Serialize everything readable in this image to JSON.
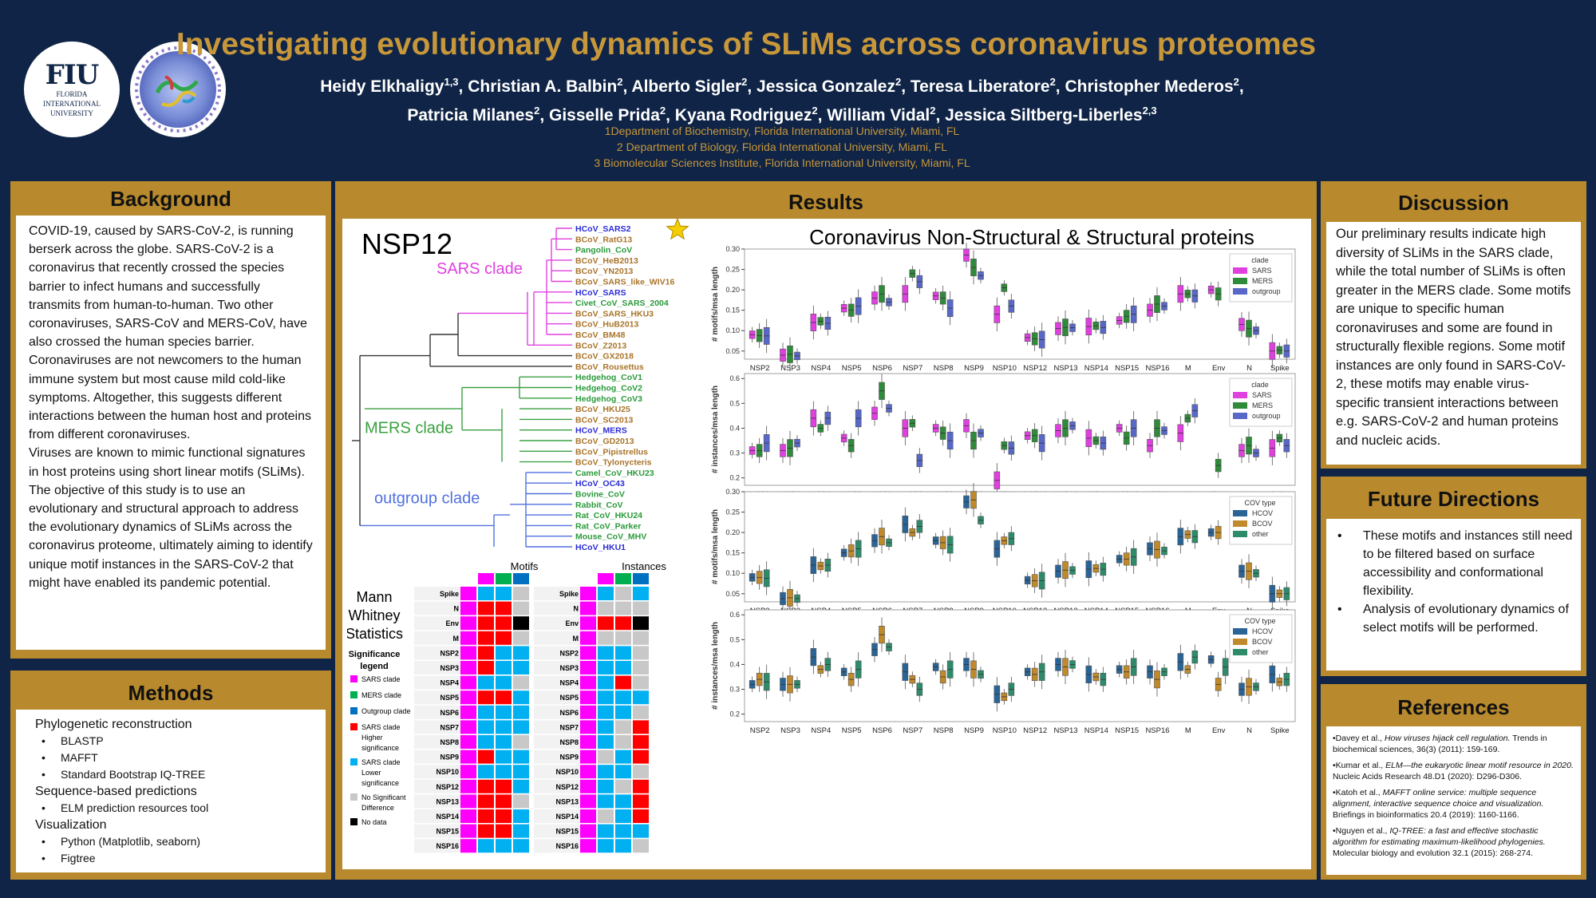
{
  "logo": {
    "fiu": "FIU",
    "fiu_sub1": "FLORIDA",
    "fiu_sub2": "INTERNATIONAL",
    "fiu_sub3": "UNIVERSITY"
  },
  "title": "Investigating evolutionary dynamics of SLiMs across coronavirus proteomes",
  "authors_line1": "Heidy Elkhaligy1,3, Christian A. Balbin2, Alberto Sigler2, Jessica Gonzalez2, Teresa Liberatore2, Christopher Mederos2,",
  "authors_line2": "Patricia Milanes2, Gisselle Prida2, Kyana Rodriguez2, William Vidal2, Jessica Siltberg-Liberles2,3",
  "affiliations": [
    "1Department of  Biochemistry, Florida International University, Miami, FL",
    "2 Department of  Biology, Florida International University, Miami, FL",
    "3 Biomolecular Sciences Institute, Florida International University, Miami, FL"
  ],
  "background": {
    "heading": "Background",
    "text": "COVID-19, caused by SARS-CoV-2, is running berserk across the globe. SARS-CoV-2 is a coronavirus that recently crossed the species barrier to infect humans and successfully transmits from human-to-human. Two other coronaviruses, SARS-CoV and MERS-CoV, have also crossed the human species barrier. Coronaviruses are not newcomers to the human immune system but most cause mild cold-like symptoms. Altogether, this suggests different interactions between the human host and proteins from different coronaviruses.",
    "text2": "Viruses are known to mimic functional signatures in host proteins using short linear motifs (SLiMs).",
    "text3": "The objective of this study is to use an evolutionary and structural approach to address the evolutionary dynamics of SLiMs across the coronavirus proteome, ultimately aiming to identify unique motif instances in the SARS-CoV-2 that might have enabled its pandemic potential."
  },
  "methods": {
    "heading": "Methods",
    "sections": [
      {
        "title": "Phylogenetic reconstruction",
        "items": [
          "BLASTP",
          "MAFFT",
          "Standard Bootstrap IQ-TREE"
        ]
      },
      {
        "title": "Sequence-based predictions",
        "items": [
          "ELM prediction resources tool"
        ]
      },
      {
        "title": "Visualization",
        "items": [
          "Python (Matplotlib, seaborn)",
          "Figtree"
        ]
      }
    ]
  },
  "results": {
    "heading": "Results",
    "nsp12": "NSP12",
    "chart_title": "Coronavirus Non-Structural & Structural proteins",
    "clades": [
      "SARS clade",
      "MERS clade",
      "outgroup clade"
    ],
    "tree_taxa": [
      {
        "name": "HCoV_SARS2",
        "color": "#2b2bd9"
      },
      {
        "name": "BCoV_RatG13",
        "color": "#a8742a"
      },
      {
        "name": "Pangolin_CoV",
        "color": "#2a9a3a"
      },
      {
        "name": "BCoV_HeB2013",
        "color": "#a8742a"
      },
      {
        "name": "BCoV_YN2013",
        "color": "#a8742a"
      },
      {
        "name": "BCoV_SARS_like_WIV16",
        "color": "#a8742a"
      },
      {
        "name": "HCoV_SARS",
        "color": "#2b2bd9"
      },
      {
        "name": "Civet_CoV_SARS_2004",
        "color": "#2a9a3a"
      },
      {
        "name": "BCoV_SARS_HKU3",
        "color": "#a8742a"
      },
      {
        "name": "BCoV_HuB2013",
        "color": "#a8742a"
      },
      {
        "name": "BCoV_BM48",
        "color": "#a8742a"
      },
      {
        "name": "BCoV_Z2013",
        "color": "#a8742a"
      },
      {
        "name": "BCoV_GX2018",
        "color": "#a8742a"
      },
      {
        "name": "BCoV_Rousettus",
        "color": "#a8742a"
      },
      {
        "name": "Hedgehog_CoV1",
        "color": "#2a9a3a"
      },
      {
        "name": "Hedgehog_CoV2",
        "color": "#2a9a3a"
      },
      {
        "name": "Hedgehog_CoV3",
        "color": "#2a9a3a"
      },
      {
        "name": "BCoV_HKU25",
        "color": "#a8742a"
      },
      {
        "name": "BCoV_SC2013",
        "color": "#a8742a"
      },
      {
        "name": "HCoV_MERS",
        "color": "#2b2bd9"
      },
      {
        "name": "BCoV_GD2013",
        "color": "#a8742a"
      },
      {
        "name": "BCoV_Pipistrellus",
        "color": "#a8742a"
      },
      {
        "name": "BCoV_Tylonycteris",
        "color": "#a8742a"
      },
      {
        "name": "Camel_CoV_HKU23",
        "color": "#2a9a3a"
      },
      {
        "name": "HCoV_OC43",
        "color": "#2b2bd9"
      },
      {
        "name": "Bovine_CoV",
        "color": "#2a9a3a"
      },
      {
        "name": "Rabbit_CoV",
        "color": "#2a9a3a"
      },
      {
        "name": "Rat_CoV_HKU24",
        "color": "#2a9a3a"
      },
      {
        "name": "Rat_CoV_Parker",
        "color": "#2a9a3a"
      },
      {
        "name": "Mouse_CoV_MHV",
        "color": "#2a9a3a"
      },
      {
        "name": "HCoV_HKU1",
        "color": "#2b2bd9"
      }
    ],
    "mann": {
      "title_lines": [
        "Mann",
        "Whitney",
        "Statistics"
      ],
      "motifs": "Motifs",
      "instances": "Instances",
      "legend_title_lines": [
        "Significance",
        "legend"
      ],
      "legend": [
        {
          "label": "SARS clade",
          "color": "#ff00ff"
        },
        {
          "label": "MERS clade",
          "color": "#00b050"
        },
        {
          "label": "Outgroup clade",
          "color": "#0070c0"
        },
        {
          "label": "SARS clade Higher significance",
          "color": "#ff0000"
        },
        {
          "label": "SARS clade Lower significance",
          "color": "#00b0f0"
        },
        {
          "label": "No Significant Difference",
          "color": "#c8c8c8"
        },
        {
          "label": "No data",
          "color": "#000000"
        }
      ],
      "rows": [
        "Spike",
        "N",
        "Env",
        "M",
        "NSP2",
        "NSP3",
        "NSP4",
        "NSP5",
        "NSP6",
        "NSP7",
        "NSP8",
        "NSP9",
        "NSP10",
        "NSP12",
        "NSP13",
        "NSP14",
        "NSP15",
        "NSP16"
      ],
      "motif_cells": [
        [
          "B",
          "B",
          "G"
        ],
        [
          "R",
          "R",
          "G"
        ],
        [
          "R",
          "R",
          "K"
        ],
        [
          "R",
          "R",
          "G"
        ],
        [
          "R",
          "B",
          "B"
        ],
        [
          "R",
          "B",
          "B"
        ],
        [
          "B",
          "B",
          "G"
        ],
        [
          "R",
          "R",
          "B"
        ],
        [
          "B",
          "B",
          "B"
        ],
        [
          "B",
          "B",
          "B"
        ],
        [
          "B",
          "B",
          "G"
        ],
        [
          "R",
          "B",
          "B"
        ],
        [
          "B",
          "B",
          "B"
        ],
        [
          "R",
          "R",
          "B"
        ],
        [
          "R",
          "R",
          "G"
        ],
        [
          "R",
          "R",
          "B"
        ],
        [
          "R",
          "R",
          "B"
        ],
        [
          "B",
          "B",
          "B"
        ]
      ],
      "instance_cells": [
        [
          "B",
          "G",
          "B"
        ],
        [
          "G",
          "G",
          "G"
        ],
        [
          "R",
          "R",
          "K"
        ],
        [
          "G",
          "G",
          "G"
        ],
        [
          "B",
          "B",
          "G"
        ],
        [
          "B",
          "B",
          "G"
        ],
        [
          "B",
          "R",
          "G"
        ],
        [
          "B",
          "B",
          "B"
        ],
        [
          "B",
          "B",
          "G"
        ],
        [
          "B",
          "G",
          "R"
        ],
        [
          "B",
          "G",
          "R"
        ],
        [
          "G",
          "B",
          "R"
        ],
        [
          "B",
          "B",
          "G"
        ],
        [
          "B",
          "G",
          "R"
        ],
        [
          "B",
          "B",
          "R"
        ],
        [
          "G",
          "B",
          "R"
        ],
        [
          "B",
          "B",
          "B"
        ],
        [
          "B",
          "B",
          "G"
        ]
      ]
    },
    "categories": [
      "NSP2",
      "NSP3",
      "NSP4",
      "NSP5",
      "NSP6",
      "NSP7",
      "NSP8",
      "NSP9",
      "NSP10",
      "NSP12",
      "NSP13",
      "NSP14",
      "NSP15",
      "NSP16",
      "M",
      "Env",
      "N",
      "Spike"
    ],
    "plots": [
      {
        "ylabel": "# motifs/msa length",
        "ylim": [
          0.03,
          0.3
        ],
        "yticks": [
          "0.05",
          "0.10",
          "0.15",
          "0.20",
          "0.25",
          "0.30"
        ],
        "legend_title": "clade",
        "series": [
          {
            "name": "SARS",
            "color": "#e040e0"
          },
          {
            "name": "MERS",
            "color": "#2e8b3a"
          },
          {
            "name": "outgroup",
            "color": "#5868c8"
          }
        ],
        "medians": [
          [
            0.09,
            0.088,
            0.087
          ],
          [
            0.04,
            0.042,
            0.038
          ],
          [
            0.12,
            0.123,
            0.118
          ],
          [
            0.155,
            0.15,
            0.16
          ],
          [
            0.18,
            0.19,
            0.17
          ],
          [
            0.19,
            0.24,
            0.22
          ],
          [
            0.185,
            0.18,
            0.155
          ],
          [
            0.285,
            0.255,
            0.235
          ],
          [
            0.14,
            0.205,
            0.16
          ],
          [
            0.083,
            0.08,
            0.078
          ],
          [
            0.105,
            0.108,
            0.107
          ],
          [
            0.11,
            0.112,
            0.108
          ],
          [
            0.125,
            0.135,
            0.14
          ],
          [
            0.15,
            0.165,
            0.16
          ],
          [
            0.19,
            0.19,
            0.185
          ],
          [
            0.2,
            0.19,
            0.0
          ],
          [
            0.115,
            0.105,
            0.1
          ],
          [
            0.05,
            0.052,
            0.05
          ]
        ]
      },
      {
        "ylabel": "# instances/msa length",
        "ylim": [
          0.17,
          0.62
        ],
        "yticks": [
          "0.2",
          "0.3",
          "0.4",
          "0.5",
          "0.6"
        ],
        "legend_title": "clade",
        "series": [
          {
            "name": "SARS",
            "color": "#e040e0"
          },
          {
            "name": "MERS",
            "color": "#2e8b3a"
          },
          {
            "name": "outgroup",
            "color": "#5868c8"
          }
        ],
        "medians": [
          [
            0.31,
            0.31,
            0.34
          ],
          [
            0.31,
            0.32,
            0.34
          ],
          [
            0.44,
            0.4,
            0.44
          ],
          [
            0.36,
            0.33,
            0.44
          ],
          [
            0.46,
            0.55,
            0.48
          ],
          [
            0.4,
            0.42,
            0.27
          ],
          [
            0.4,
            0.38,
            0.35
          ],
          [
            0.41,
            0.35,
            0.38
          ],
          [
            0.19,
            0.33,
            0.32
          ],
          [
            0.37,
            0.37,
            0.34
          ],
          [
            0.39,
            0.4,
            0.41
          ],
          [
            0.36,
            0.35,
            0.34
          ],
          [
            0.4,
            0.36,
            0.4
          ],
          [
            0.33,
            0.4,
            0.39
          ],
          [
            0.38,
            0.44,
            0.47
          ],
          [
            0.0,
            0.25,
            0.0
          ],
          [
            0.31,
            0.33,
            0.3
          ],
          [
            0.32,
            0.36,
            0.33
          ]
        ]
      },
      {
        "ylabel": "# motifs/msa length",
        "ylim": [
          0.03,
          0.3
        ],
        "yticks": [
          "0.05",
          "0.10",
          "0.15",
          "0.20",
          "0.25",
          "0.30"
        ],
        "legend_title": "COV type",
        "series": [
          {
            "name": "HCOV",
            "color": "#2a6496"
          },
          {
            "name": "BCOV",
            "color": "#c08a2a"
          },
          {
            "name": "other",
            "color": "#2e8b6a"
          }
        ],
        "medians": [
          [
            0.09,
            0.09,
            0.088
          ],
          [
            0.038,
            0.04,
            0.038
          ],
          [
            0.12,
            0.118,
            0.12
          ],
          [
            0.15,
            0.155,
            0.16
          ],
          [
            0.18,
            0.19,
            0.175
          ],
          [
            0.22,
            0.2,
            0.215
          ],
          [
            0.18,
            0.175,
            0.17
          ],
          [
            0.275,
            0.28,
            0.23
          ],
          [
            0.16,
            0.18,
            0.185
          ],
          [
            0.083,
            0.082,
            0.082
          ],
          [
            0.105,
            0.108,
            0.107
          ],
          [
            0.11,
            0.112,
            0.11
          ],
          [
            0.135,
            0.135,
            0.14
          ],
          [
            0.16,
            0.158,
            0.155
          ],
          [
            0.19,
            0.195,
            0.19
          ],
          [
            0.2,
            0.2,
            0.0
          ],
          [
            0.105,
            0.105,
            0.1
          ],
          [
            0.05,
            0.05,
            0.05
          ]
        ]
      },
      {
        "ylabel": "# instances/msa length",
        "ylim": [
          0.17,
          0.62
        ],
        "yticks": [
          "0.2",
          "0.3",
          "0.4",
          "0.5",
          "0.6"
        ],
        "legend_title": "COV type",
        "series": [
          {
            "name": "HCOV",
            "color": "#2a6496"
          },
          {
            "name": "BCOV",
            "color": "#c08a2a"
          },
          {
            "name": "other",
            "color": "#2e8b6a"
          }
        ],
        "medians": [
          [
            0.32,
            0.34,
            0.33
          ],
          [
            0.32,
            0.32,
            0.32
          ],
          [
            0.43,
            0.38,
            0.4
          ],
          [
            0.37,
            0.34,
            0.38
          ],
          [
            0.46,
            0.52,
            0.47
          ],
          [
            0.37,
            0.34,
            0.3
          ],
          [
            0.39,
            0.35,
            0.38
          ],
          [
            0.4,
            0.38,
            0.36
          ],
          [
            0.28,
            0.27,
            0.3
          ],
          [
            0.37,
            0.36,
            0.37
          ],
          [
            0.4,
            0.39,
            0.4
          ],
          [
            0.36,
            0.35,
            0.34
          ],
          [
            0.38,
            0.37,
            0.39
          ],
          [
            0.37,
            0.34,
            0.37
          ],
          [
            0.41,
            0.38,
            0.43
          ],
          [
            0.42,
            0.32,
            0.39
          ],
          [
            0.3,
            0.31,
            0.31
          ],
          [
            0.36,
            0.33,
            0.34
          ]
        ]
      }
    ]
  },
  "discussion": {
    "heading": "Discussion",
    "text": "Our preliminary results indicate high diversity of SLiMs in the SARS clade, while the total number of SLiMs is often greater in the MERS clade. Some motifs are unique to specific human coronaviruses and some are found in structurally flexible regions. Some motif instances are only found in SARS-CoV-2, these motifs may enable virus-specific transient interactions between e.g. SARS-CoV-2 and human proteins and nucleic acids."
  },
  "future": {
    "heading": "Future Directions",
    "items": [
      "These motifs and instances still need to be filtered based on surface accessibility and conformational flexibility.",
      "Analysis of evolutionary dynamics of select motifs will be performed."
    ]
  },
  "references": {
    "heading": "References",
    "items": [
      {
        "pre": "•Davey et al., ",
        "em": "How viruses hijack cell regulation.",
        "post": " Trends in biochemical sciences, 36(3) (2011): 159-169."
      },
      {
        "pre": "•Kumar et al., ",
        "em": "ELM—the eukaryotic linear motif resource in 2020.",
        "post": " Nucleic Acids Research 48.D1 (2020): D296-D306."
      },
      {
        "pre": "•Katoh et al., ",
        "em": "MAFFT online service: multiple sequence alignment, interactive sequence choice and visualization.",
        "post": " Briefings in bioinformatics 20.4 (2019): 1160-1166."
      },
      {
        "pre": "•Nguyen et al., ",
        "em": "IQ-TREE: a fast and effective stochastic algorithm for estimating maximum-likelihood phylogenies.",
        "post": " Molecular biology and evolution 32.1 (2015): 268-274."
      }
    ]
  }
}
